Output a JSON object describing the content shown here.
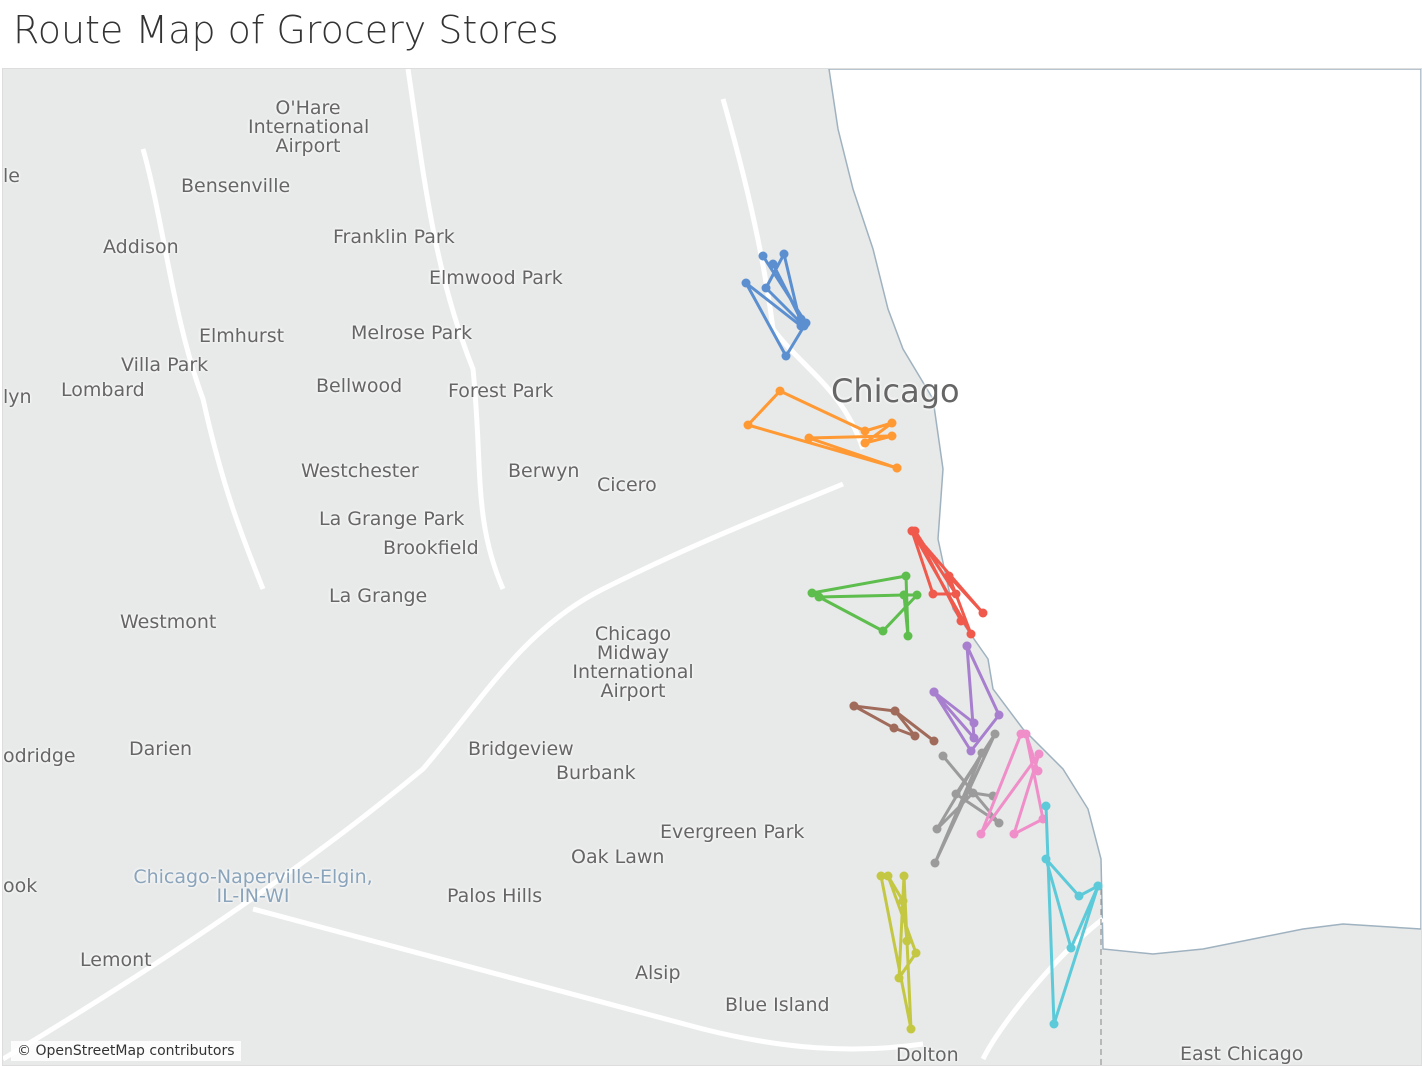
{
  "title": "Route Map of Grocery Stores",
  "map": {
    "attribution": "© OpenStreetMap contributors",
    "labels": [
      "O'Hare International Airport",
      "Bensenville",
      "Addison",
      "Franklin Park",
      "Elmwood Park",
      "Elmhurst",
      "Melrose Park",
      "Villa Park",
      "Lombard",
      "Bellwood",
      "Forest Park",
      "Chicago",
      "Westchester",
      "Berwyn",
      "Cicero",
      "La Grange Park",
      "Brookfield",
      "La Grange",
      "Westmont",
      "Chicago Midway International Airport",
      "Darien",
      "Bridgeview",
      "Burbank",
      "Evergreen Park",
      "Oak Lawn",
      "Chicago-Naperville-Elgin, IL-IN-WI",
      "Palos Hills",
      "Lemont",
      "Alsip",
      "Blue Island",
      "Dolton",
      "East Chicago",
      "le",
      "lyn",
      "odridge",
      "ook"
    ],
    "routes": [
      {
        "color": "#5b8fd0"
      },
      {
        "color": "#ff9933"
      },
      {
        "color": "#ef5a4d"
      },
      {
        "color": "#5dbd4d"
      },
      {
        "color": "#a77fce"
      },
      {
        "color": "#a06b5b"
      },
      {
        "color": "#9b9b9b"
      },
      {
        "color": "#ef8ec8"
      },
      {
        "color": "#5ccad9"
      },
      {
        "color": "#c3c742"
      }
    ]
  }
}
